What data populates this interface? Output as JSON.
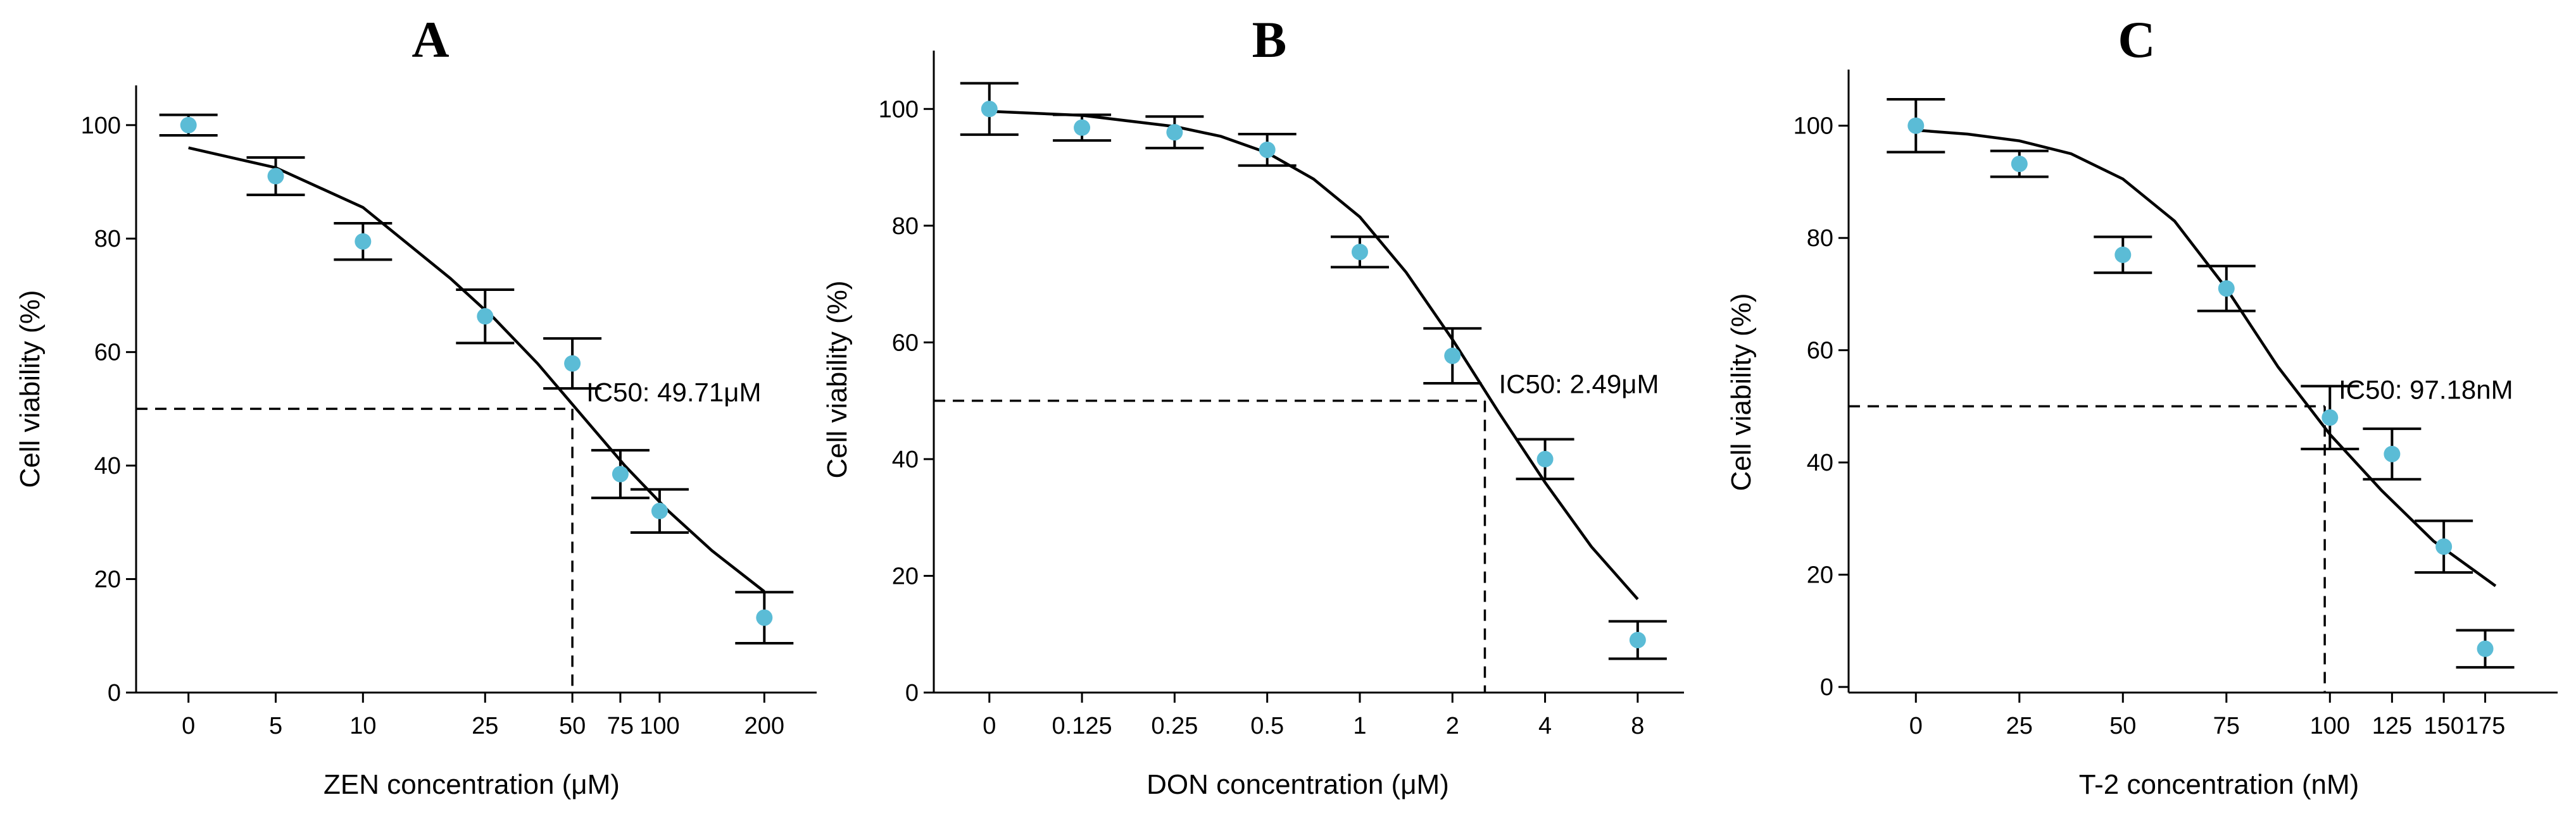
{
  "chart_data": [
    {
      "type": "scatter",
      "panel": "A",
      "xlabel": "ZEN concentration (μM)",
      "ylabel": "Cell viability (%)",
      "ylim": [
        0,
        107
      ],
      "yticks": [
        0,
        20,
        40,
        60,
        80,
        100
      ],
      "categories": [
        "0",
        "5",
        "10",
        "25",
        "50",
        "75",
        "100",
        "200"
      ],
      "x": [
        0,
        1,
        2,
        3.4,
        4.4,
        4.95,
        5.4,
        6.6
      ],
      "xlim": [
        -0.6,
        7.2
      ],
      "points": [
        {
          "label": "0",
          "x": 0,
          "y": 100,
          "err": 1.8
        },
        {
          "label": "5",
          "x": 1,
          "y": 91,
          "err": 3.3
        },
        {
          "label": "10",
          "x": 2,
          "y": 79.5,
          "err": 3.2
        },
        {
          "label": "25",
          "x": 3.4,
          "y": 66.3,
          "err": 4.7
        },
        {
          "label": "50",
          "x": 4.4,
          "y": 58,
          "err": 4.4
        },
        {
          "label": "75",
          "x": 4.95,
          "y": 38.5,
          "err": 4.2
        },
        {
          "label": "100",
          "x": 5.4,
          "y": 32,
          "err": 3.8
        },
        {
          "label": "200",
          "x": 6.6,
          "y": 13.2,
          "err": 4.5
        }
      ],
      "curve": {
        "x": [
          0,
          1,
          2,
          3,
          3.5,
          4,
          4.5,
          5,
          5.5,
          6,
          6.6
        ],
        "y": [
          96,
          92.5,
          85.5,
          73,
          66,
          58,
          49,
          40,
          32,
          25,
          17.8
        ]
      },
      "ic50": {
        "x": 4.4,
        "y": 50,
        "label": "IC50: 49.71μM"
      }
    },
    {
      "type": "scatter",
      "panel": "B",
      "xlabel": "DON concentration  (μM)",
      "ylabel": "Cell viability (%)",
      "ylim": [
        0,
        110
      ],
      "yticks": [
        0,
        20,
        40,
        60,
        80,
        100
      ],
      "categories": [
        "0",
        "0.125",
        "0.25",
        "0.5",
        "1",
        "2",
        "4",
        "8"
      ],
      "x": [
        0,
        1,
        2,
        3,
        4,
        5,
        6,
        7
      ],
      "xlim": [
        -0.6,
        7.5
      ],
      "points": [
        {
          "label": "0",
          "x": 0,
          "y": 100,
          "err": 4.4
        },
        {
          "label": "0.125",
          "x": 1,
          "y": 96.8,
          "err": 2.2
        },
        {
          "label": "0.25",
          "x": 2,
          "y": 96,
          "err": 2.7
        },
        {
          "label": "0.5",
          "x": 3,
          "y": 93,
          "err": 2.7
        },
        {
          "label": "1",
          "x": 4,
          "y": 75.5,
          "err": 2.6
        },
        {
          "label": "2",
          "x": 5,
          "y": 57.7,
          "err": 4.7
        },
        {
          "label": "4",
          "x": 6,
          "y": 40,
          "err": 3.4
        },
        {
          "label": "8",
          "x": 7,
          "y": 9,
          "err": 3.2
        }
      ],
      "curve": {
        "x": [
          0,
          1,
          2,
          2.5,
          3,
          3.5,
          4,
          4.5,
          5,
          5.5,
          6,
          6.5,
          7
        ],
        "y": [
          99.6,
          98.9,
          97,
          95.3,
          92.5,
          88,
          81.5,
          72,
          60.5,
          48,
          36,
          25,
          16
        ]
      },
      "ic50": {
        "x": 5.35,
        "y": 50,
        "label": "IC50: 2.49μM"
      }
    },
    {
      "type": "scatter",
      "panel": "C",
      "xlabel": "T-2 concentration (nM)",
      "ylabel": "Cell viability (%)",
      "ylim": [
        -1,
        110
      ],
      "yticks": [
        0,
        20,
        40,
        60,
        80,
        100
      ],
      "categories": [
        "0",
        "25",
        "50",
        "75",
        "100",
        "125",
        "150",
        "175"
      ],
      "x": [
        0,
        1,
        2,
        3,
        4,
        4.6,
        5.1,
        5.5
      ],
      "xlim": [
        -0.65,
        6.2
      ],
      "points": [
        {
          "label": "0",
          "x": 0,
          "y": 100,
          "err": 4.7
        },
        {
          "label": "25",
          "x": 1,
          "y": 93.2,
          "err": 2.3
        },
        {
          "label": "50",
          "x": 2,
          "y": 77,
          "err": 3.2
        },
        {
          "label": "75",
          "x": 3,
          "y": 71,
          "err": 4
        },
        {
          "label": "100",
          "x": 4,
          "y": 48,
          "err": 5.6
        },
        {
          "label": "125",
          "x": 4.6,
          "y": 41.5,
          "err": 4.5
        },
        {
          "label": "150",
          "x": 5.1,
          "y": 25,
          "err": 4.6
        },
        {
          "label": "175",
          "x": 5.5,
          "y": 6.8,
          "err": 3.3
        }
      ],
      "curve": {
        "x": [
          0,
          0.5,
          1,
          1.5,
          2,
          2.5,
          3,
          3.5,
          4,
          4.5,
          5,
          5.6
        ],
        "y": [
          99.2,
          98.5,
          97.3,
          95,
          90.5,
          83,
          71,
          57,
          45,
          35,
          26,
          18
        ]
      },
      "ic50": {
        "x": 3.95,
        "y": 50,
        "label": "IC50: 97.18nM"
      }
    }
  ]
}
